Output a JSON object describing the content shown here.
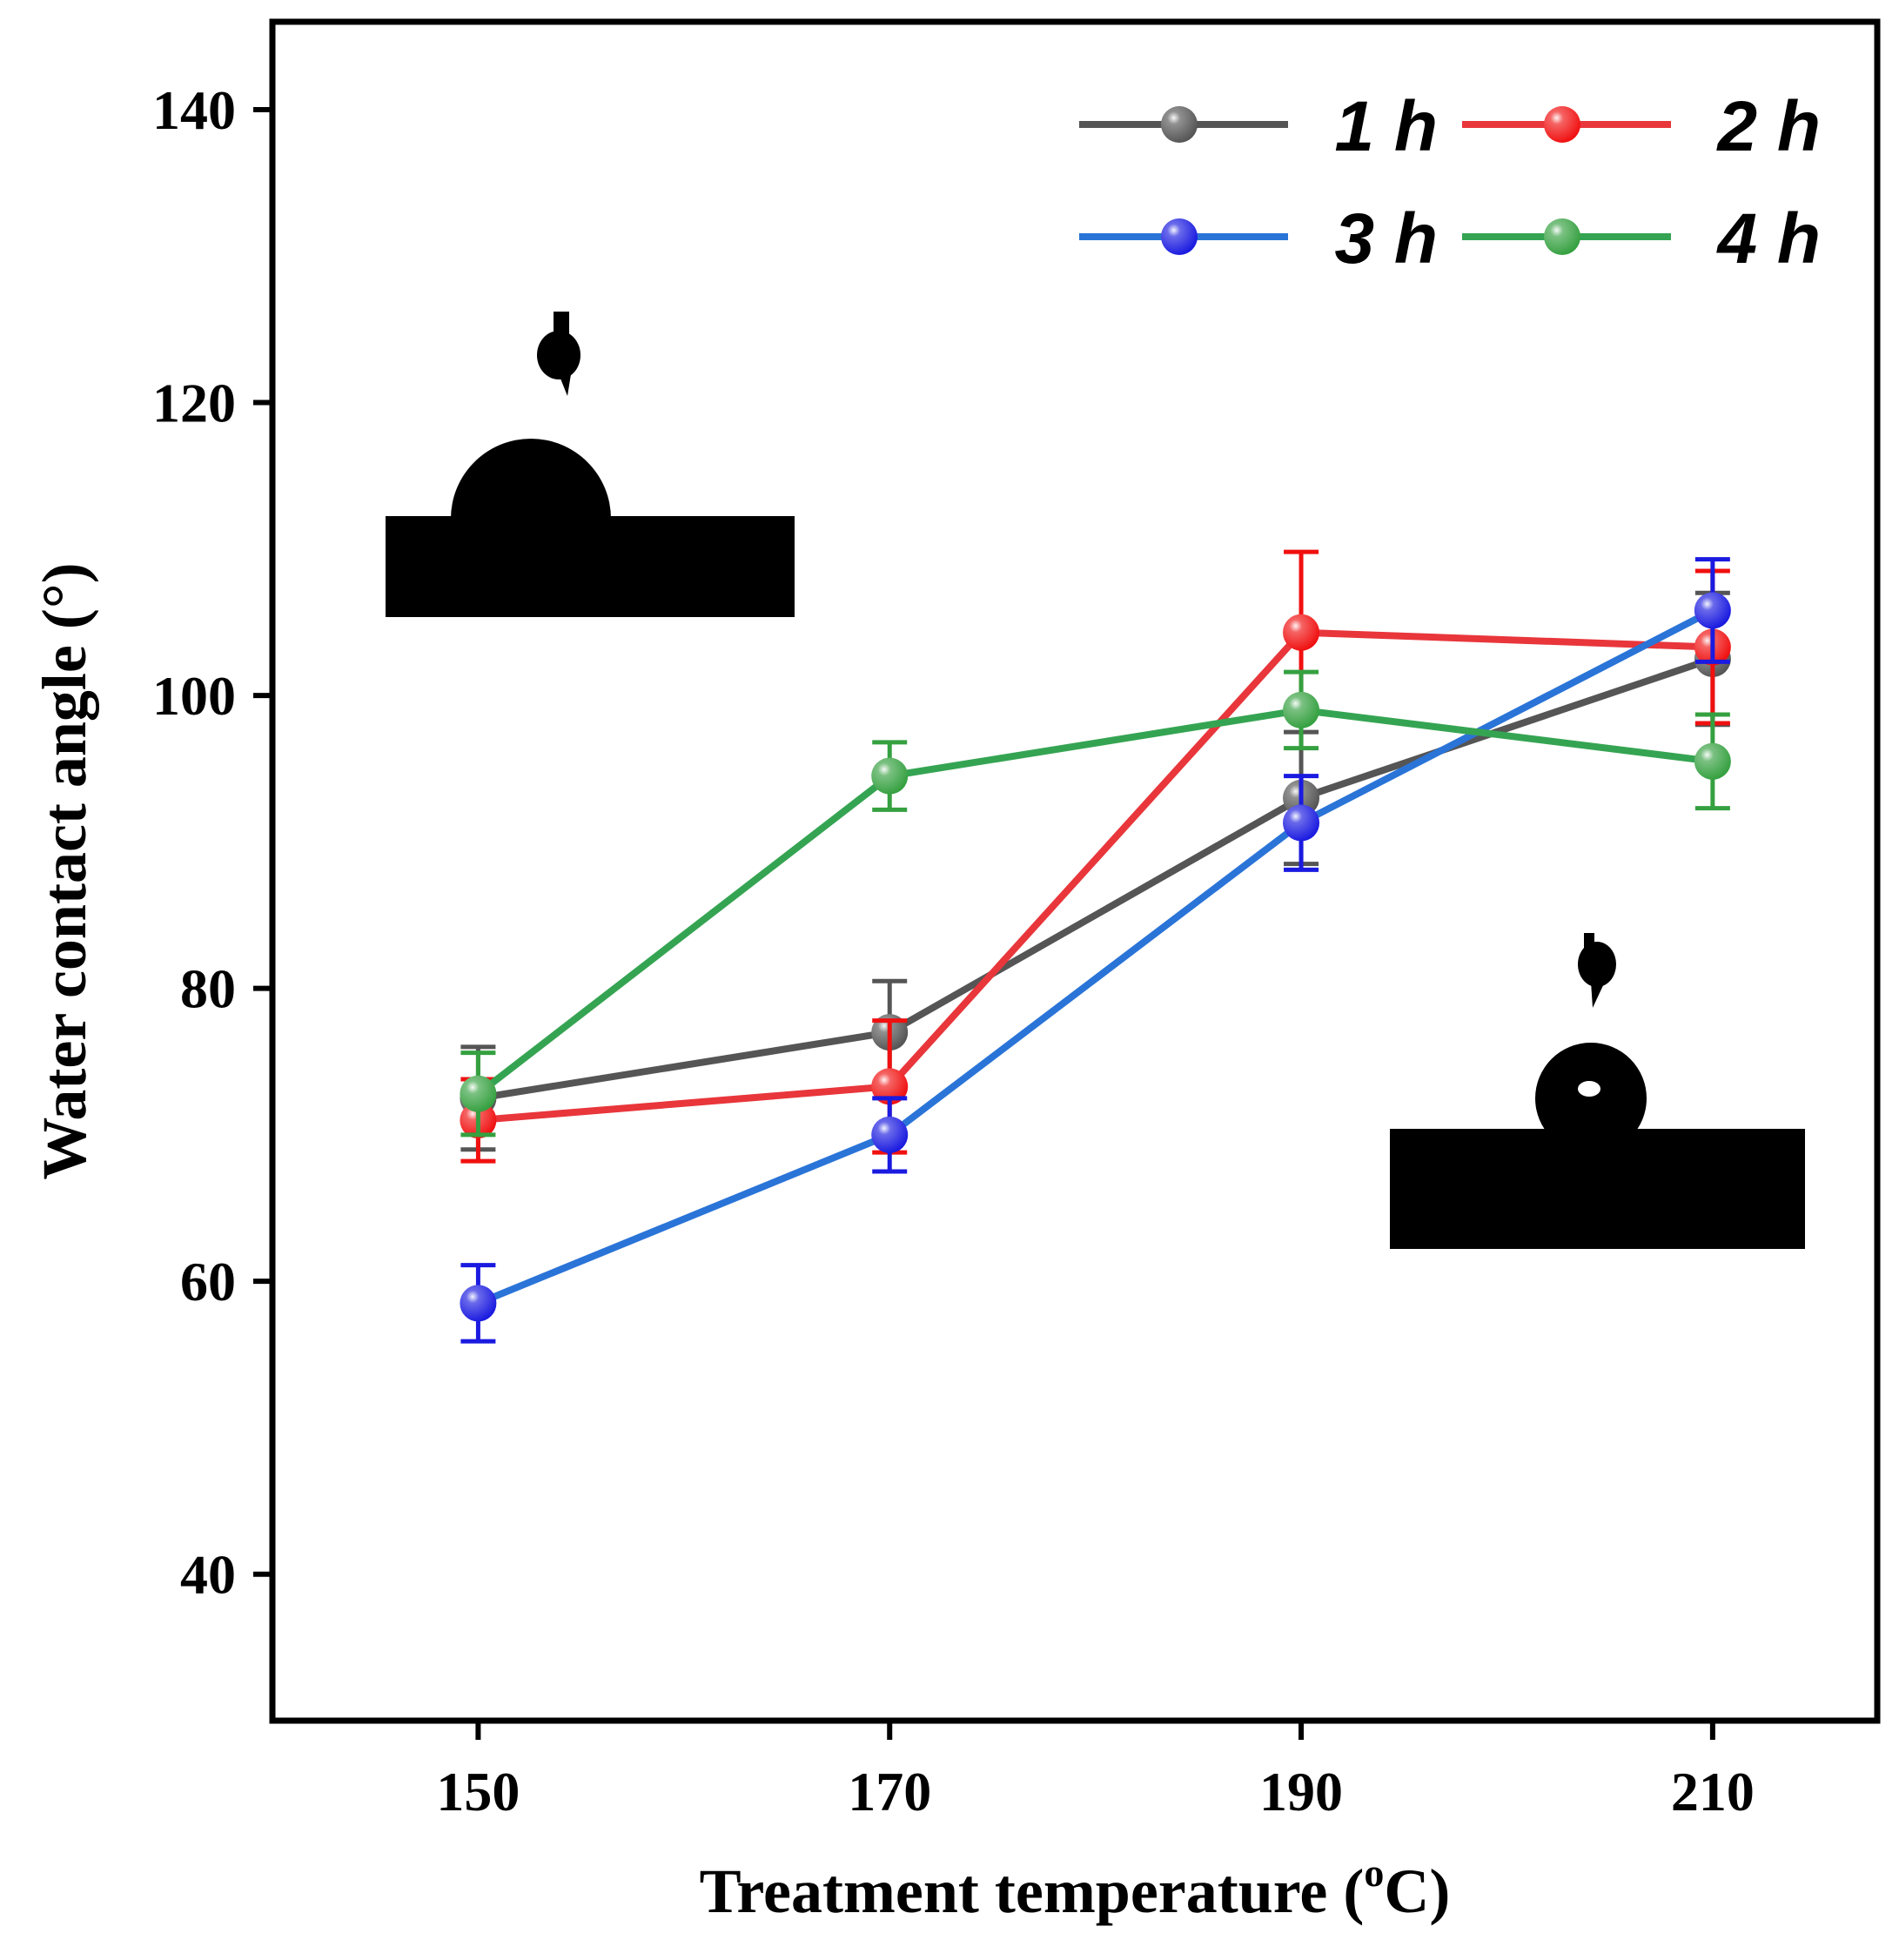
{
  "chart_data": {
    "type": "line",
    "xlabel": "Treatment temperature (",
    "xlabel_unit_sup": "o",
    "xlabel_unit_end": "C)",
    "ylabel": "Water contact angle (°)",
    "x": [
      150,
      170,
      190,
      210
    ],
    "xlim": [
      140,
      218
    ],
    "ylim": [
      30,
      146
    ],
    "xticks": [
      "150",
      "170",
      "190",
      "210"
    ],
    "yticks": [
      "40",
      "60",
      "80",
      "100",
      "120",
      "140"
    ],
    "ytick_values": [
      40,
      60,
      80,
      100,
      120,
      140
    ],
    "legend_position": "top-right",
    "series": [
      {
        "name": "1 h",
        "color": "#555555",
        "values": [
          72.5,
          77.0,
          93.0,
          102.5
        ],
        "errors": [
          3.5,
          3.5,
          4.5,
          4.5
        ]
      },
      {
        "name": "2 h",
        "color": "#e8363b",
        "values": [
          71.0,
          73.3,
          104.3,
          103.3
        ],
        "errors": [
          2.8,
          4.5,
          5.5,
          5.2
        ]
      },
      {
        "name": "3 h",
        "color": "#2a74d8",
        "values": [
          58.5,
          70.0,
          91.3,
          105.8
        ],
        "errors": [
          2.6,
          2.5,
          3.2,
          3.5
        ]
      },
      {
        "name": "4 h",
        "color": "#35a452",
        "values": [
          72.8,
          94.5,
          99.0,
          95.5
        ],
        "errors": [
          2.8,
          2.3,
          2.6,
          3.2
        ]
      }
    ],
    "marker_colors": [
      "#555555",
      "#f01010",
      "#1a1ae0",
      "#35a040"
    ]
  }
}
